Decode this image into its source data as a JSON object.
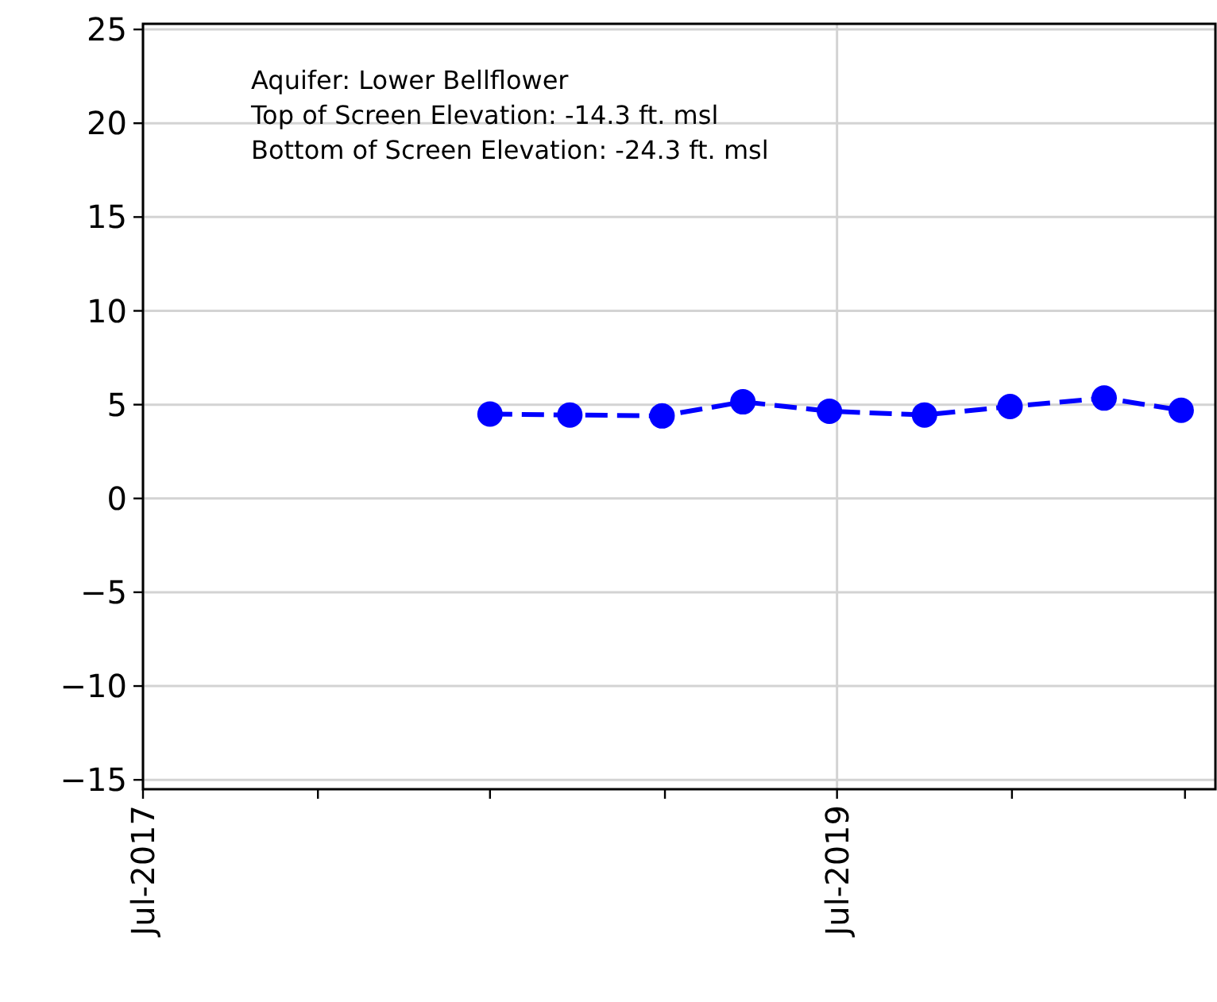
{
  "chart_data": {
    "type": "line",
    "x": [
      "2018-07-01",
      "2018-09-23",
      "2018-12-29",
      "2019-03-24",
      "2019-06-23",
      "2019-10-01",
      "2019-12-30",
      "2020-04-07",
      "2020-06-27"
    ],
    "series": [
      {
        "color": "#0000ff",
        "values": [
          4.5,
          4.45,
          4.4,
          5.15,
          4.65,
          4.45,
          4.9,
          5.35,
          4.7
        ]
      }
    ],
    "xlim": [
      "2017-07-01",
      "2020-08-02"
    ],
    "xticks": [
      {
        "value": "2017-07-01",
        "label": "Jul-2017"
      },
      {
        "value": "2018-01-01",
        "label": null
      },
      {
        "value": "2018-07-01",
        "label": null
      },
      {
        "value": "2019-01-01",
        "label": null
      },
      {
        "value": "2019-07-01",
        "label": "Jul-2019"
      },
      {
        "value": "2020-01-01",
        "label": null
      },
      {
        "value": "2020-07-01",
        "label": null
      }
    ],
    "ylim": [
      -15.5,
      25.3
    ],
    "yticks": [
      -15,
      -10,
      -5,
      0,
      5,
      10,
      15,
      20,
      25
    ],
    "grid": true,
    "marker": "circle",
    "line_style": "dashed",
    "annotations": [
      "Aquifer: Lower Bellflower",
      "Top of Screen Elevation: -14.3 ft. msl",
      "Bottom of Screen Elevation: -24.3 ft. msl"
    ]
  }
}
